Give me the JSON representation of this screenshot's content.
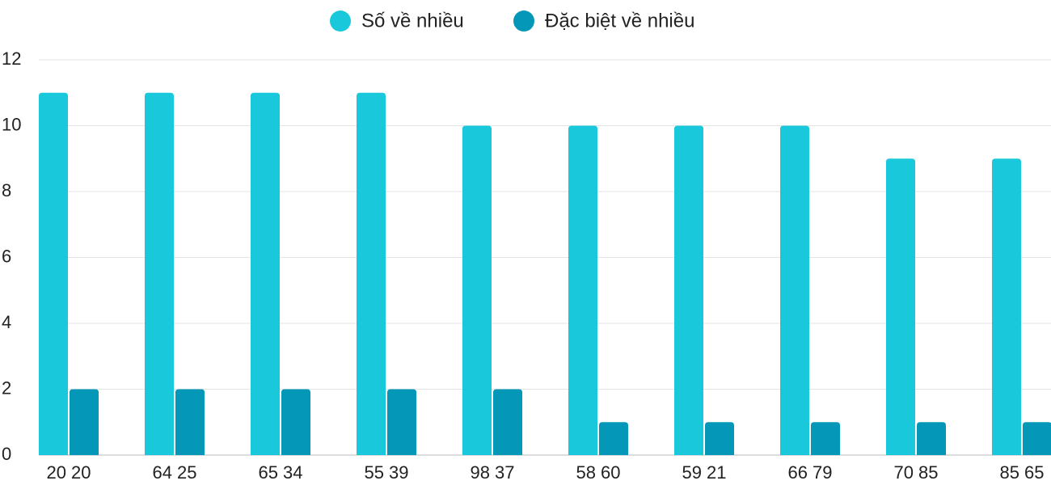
{
  "chart_data": {
    "type": "bar",
    "categories": [
      "20 20",
      "64 25",
      "65 34",
      "55 39",
      "98 37",
      "58 60",
      "59 21",
      "66 79",
      "70 85",
      "85 65"
    ],
    "series": [
      {
        "name": "Số về nhiều",
        "color": "#1ac8db",
        "values": [
          11,
          11,
          11,
          11,
          10,
          10,
          10,
          10,
          9,
          9
        ]
      },
      {
        "name": "Đặc biệt về nhiều",
        "color": "#0597b8",
        "values": [
          2,
          2,
          2,
          2,
          2,
          1,
          1,
          1,
          1,
          1
        ]
      }
    ],
    "ylim": [
      0,
      12
    ],
    "yticks": [
      0,
      2,
      4,
      6,
      8,
      10,
      12
    ],
    "grid": true
  }
}
